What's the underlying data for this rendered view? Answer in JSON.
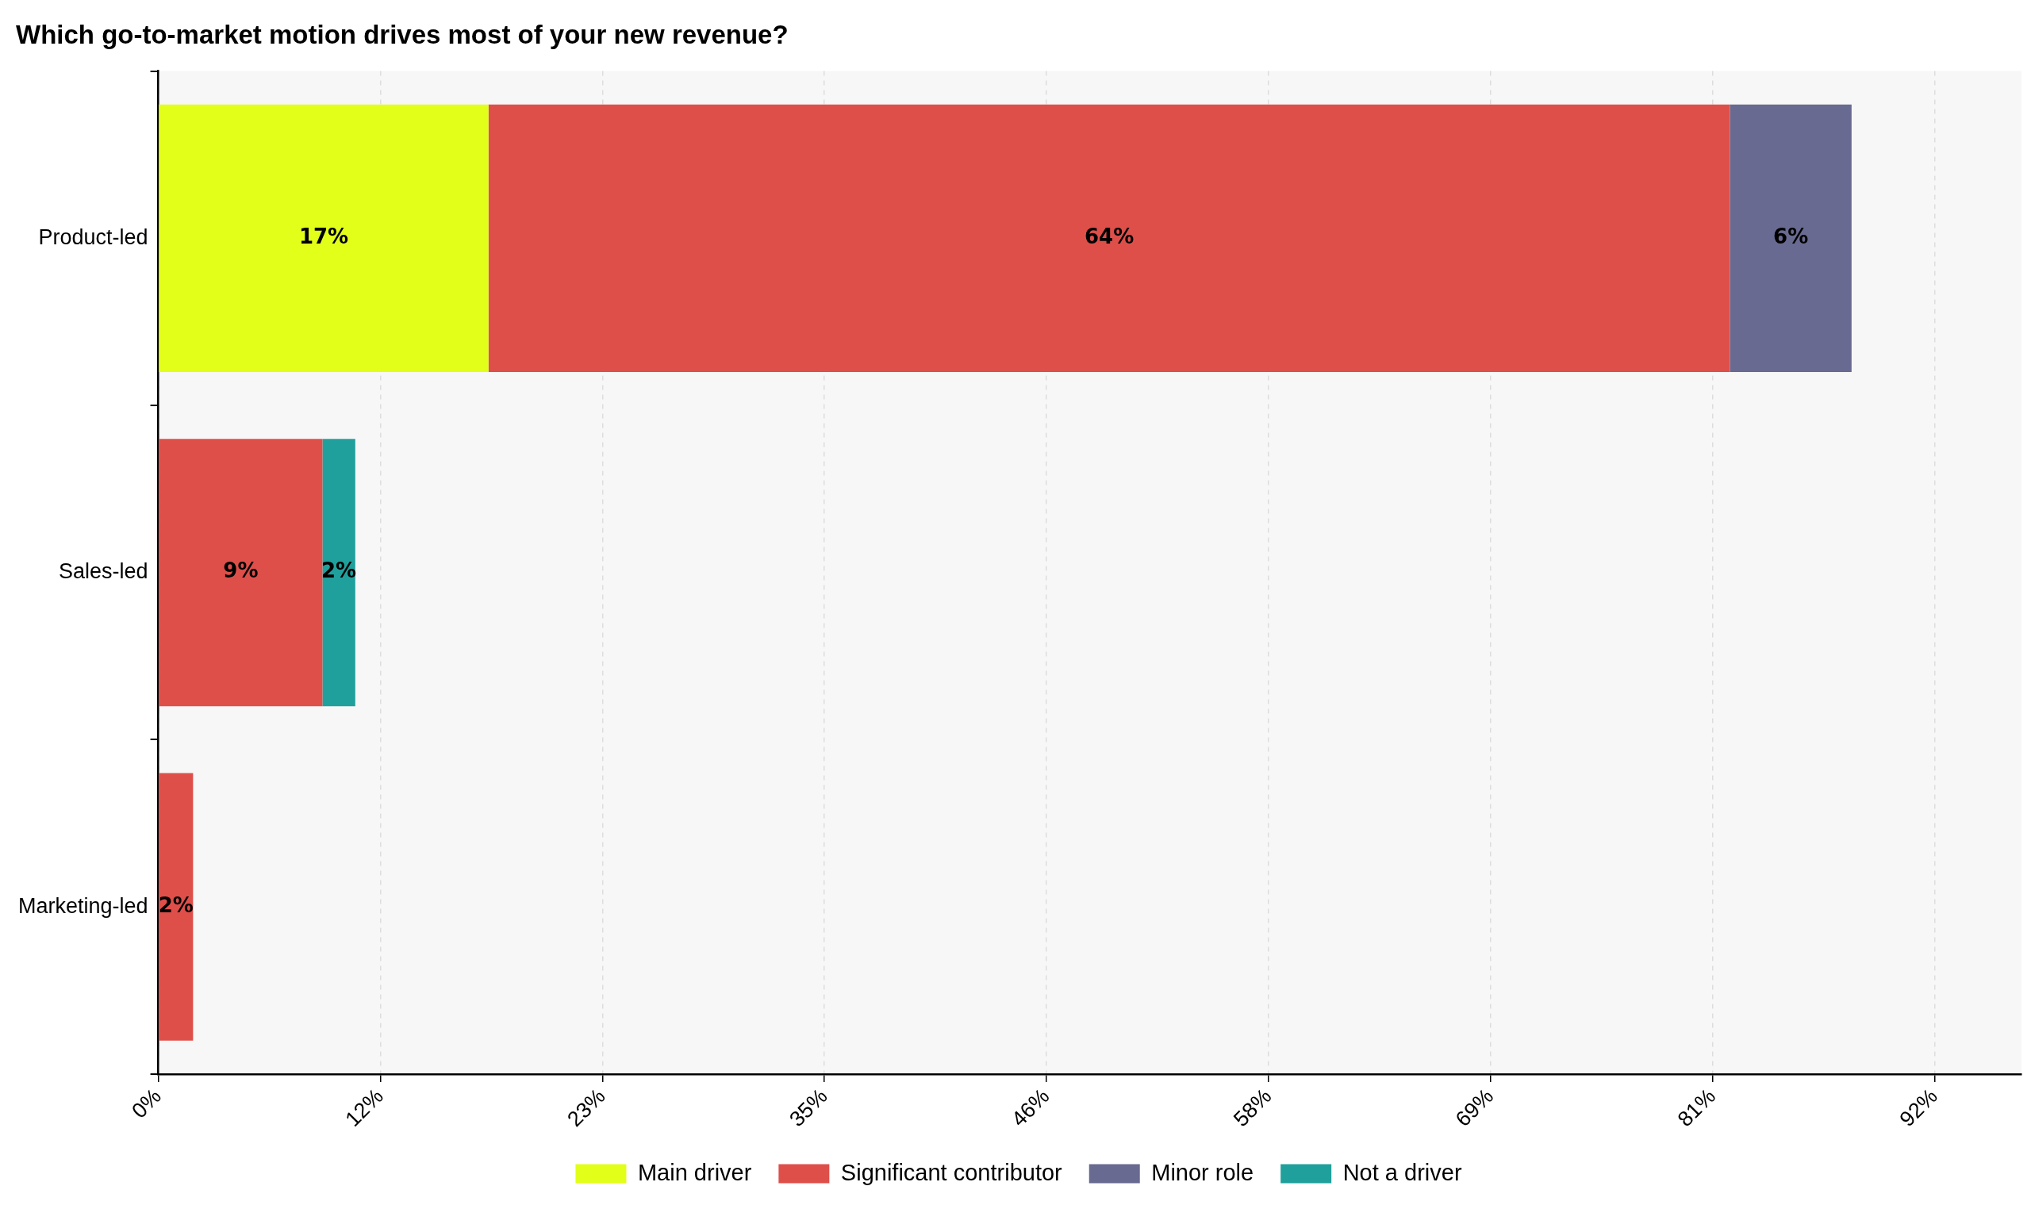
{
  "chart_data": {
    "type": "bar",
    "orientation": "horizontal",
    "stacked": true,
    "title": "Which go-to-market motion drives most of your new revenue?",
    "categories": [
      "Product-led",
      "Sales-led",
      "Marketing-led"
    ],
    "series": [
      {
        "name": "Main driver",
        "color": "#e2ff1a",
        "values": [
          17.1,
          null,
          null
        ],
        "value_labels": [
          "17%",
          null,
          null
        ]
      },
      {
        "name": "Significant contributor",
        "color": "#df4f4a",
        "values": [
          64.3,
          8.5,
          1.8
        ],
        "value_labels": [
          "64%",
          "9%",
          "2%"
        ]
      },
      {
        "name": "Minor role",
        "color": "#696a91",
        "values": [
          6.3,
          null,
          null
        ],
        "value_labels": [
          "6%",
          null,
          null
        ]
      },
      {
        "name": "Not a driver",
        "color": "#20a09c",
        "values": [
          null,
          1.7,
          null
        ],
        "value_labels": [
          null,
          "2%",
          null
        ]
      }
    ],
    "xlim": [
      0,
      96.5
    ],
    "xticks": [
      {
        "value": 0,
        "label": "0%"
      },
      {
        "value": 11.5,
        "label": "12%"
      },
      {
        "value": 23,
        "label": "23%"
      },
      {
        "value": 34.5,
        "label": "35%"
      },
      {
        "value": 46,
        "label": "46%"
      },
      {
        "value": 57.5,
        "label": "58%"
      },
      {
        "value": 69,
        "label": "69%"
      },
      {
        "value": 80.5,
        "label": "81%"
      },
      {
        "value": 92,
        "label": "92%"
      }
    ],
    "grid": "x",
    "legend": "bottom"
  }
}
